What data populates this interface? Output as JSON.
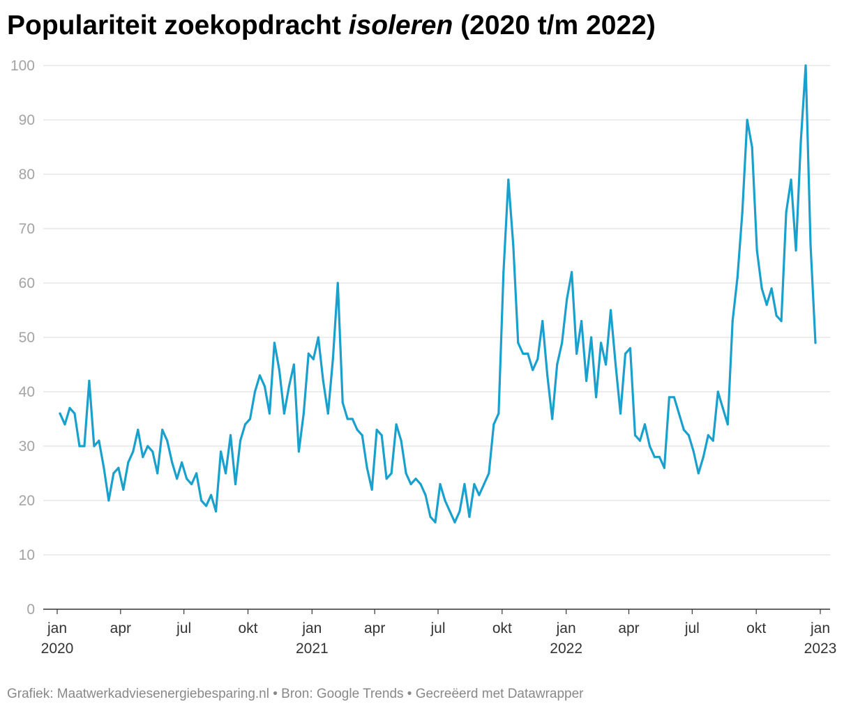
{
  "title": {
    "prefix": "Populariteit zoekopdracht ",
    "keyword": "isoleren",
    "suffix": " (2020 t/m 2022)"
  },
  "footer": "Grafiek: Maatwerkadviesenergiebesparing.nl • Bron: Google Trends • Gecreëerd met Datawrapper",
  "colors": {
    "line": "#1aa0cd",
    "grid": "#e2e2e2",
    "axis": "#333333"
  },
  "chart_data": {
    "type": "line",
    "title": "Populariteit zoekopdracht isoleren (2020 t/m 2022)",
    "xlabel": "",
    "ylabel": "",
    "ylim": [
      0,
      100
    ],
    "yticks": [
      0,
      10,
      20,
      30,
      40,
      50,
      60,
      70,
      80,
      90,
      100
    ],
    "grid": true,
    "legend": "none",
    "x_start": "2020-01-05",
    "x_interval": "week",
    "x_ticks": [
      {
        "date": "2020-01-01",
        "label": "jan",
        "sublabel": "2020"
      },
      {
        "date": "2020-04-01",
        "label": "apr",
        "sublabel": ""
      },
      {
        "date": "2020-07-01",
        "label": "jul",
        "sublabel": ""
      },
      {
        "date": "2020-10-01",
        "label": "okt",
        "sublabel": ""
      },
      {
        "date": "2021-01-01",
        "label": "jan",
        "sublabel": "2021"
      },
      {
        "date": "2021-04-01",
        "label": "apr",
        "sublabel": ""
      },
      {
        "date": "2021-07-01",
        "label": "jul",
        "sublabel": ""
      },
      {
        "date": "2021-10-01",
        "label": "okt",
        "sublabel": ""
      },
      {
        "date": "2022-01-01",
        "label": "jan",
        "sublabel": "2022"
      },
      {
        "date": "2022-04-01",
        "label": "apr",
        "sublabel": ""
      },
      {
        "date": "2022-07-01",
        "label": "jul",
        "sublabel": ""
      },
      {
        "date": "2022-10-01",
        "label": "okt",
        "sublabel": ""
      },
      {
        "date": "2023-01-01",
        "label": "jan",
        "sublabel": "2023"
      }
    ],
    "values": [
      36,
      34,
      37,
      36,
      30,
      30,
      42,
      30,
      31,
      26,
      20,
      25,
      26,
      22,
      27,
      29,
      33,
      28,
      30,
      29,
      25,
      33,
      31,
      27,
      24,
      27,
      24,
      23,
      25,
      20,
      19,
      21,
      18,
      29,
      25,
      32,
      23,
      31,
      34,
      35,
      40,
      43,
      41,
      36,
      49,
      44,
      36,
      41,
      45,
      29,
      36,
      47,
      46,
      50,
      42,
      36,
      46,
      60,
      38,
      35,
      35,
      33,
      32,
      26,
      22,
      33,
      32,
      24,
      25,
      34,
      31,
      25,
      23,
      24,
      23,
      21,
      17,
      16,
      23,
      20,
      18,
      16,
      18,
      23,
      17,
      23,
      21,
      23,
      25,
      34,
      36,
      62,
      79,
      67,
      49,
      47,
      47,
      44,
      46,
      53,
      43,
      35,
      45,
      49,
      57,
      62,
      47,
      53,
      42,
      50,
      39,
      49,
      45,
      55,
      45,
      36,
      47,
      48,
      32,
      31,
      34,
      30,
      28,
      28,
      26,
      39,
      39,
      36,
      33,
      32,
      29,
      25,
      28,
      32,
      31,
      40,
      37,
      34,
      53,
      61,
      73,
      90,
      85,
      66,
      59,
      56,
      59,
      54,
      53,
      73,
      79,
      66,
      86,
      100,
      67,
      49
    ]
  }
}
